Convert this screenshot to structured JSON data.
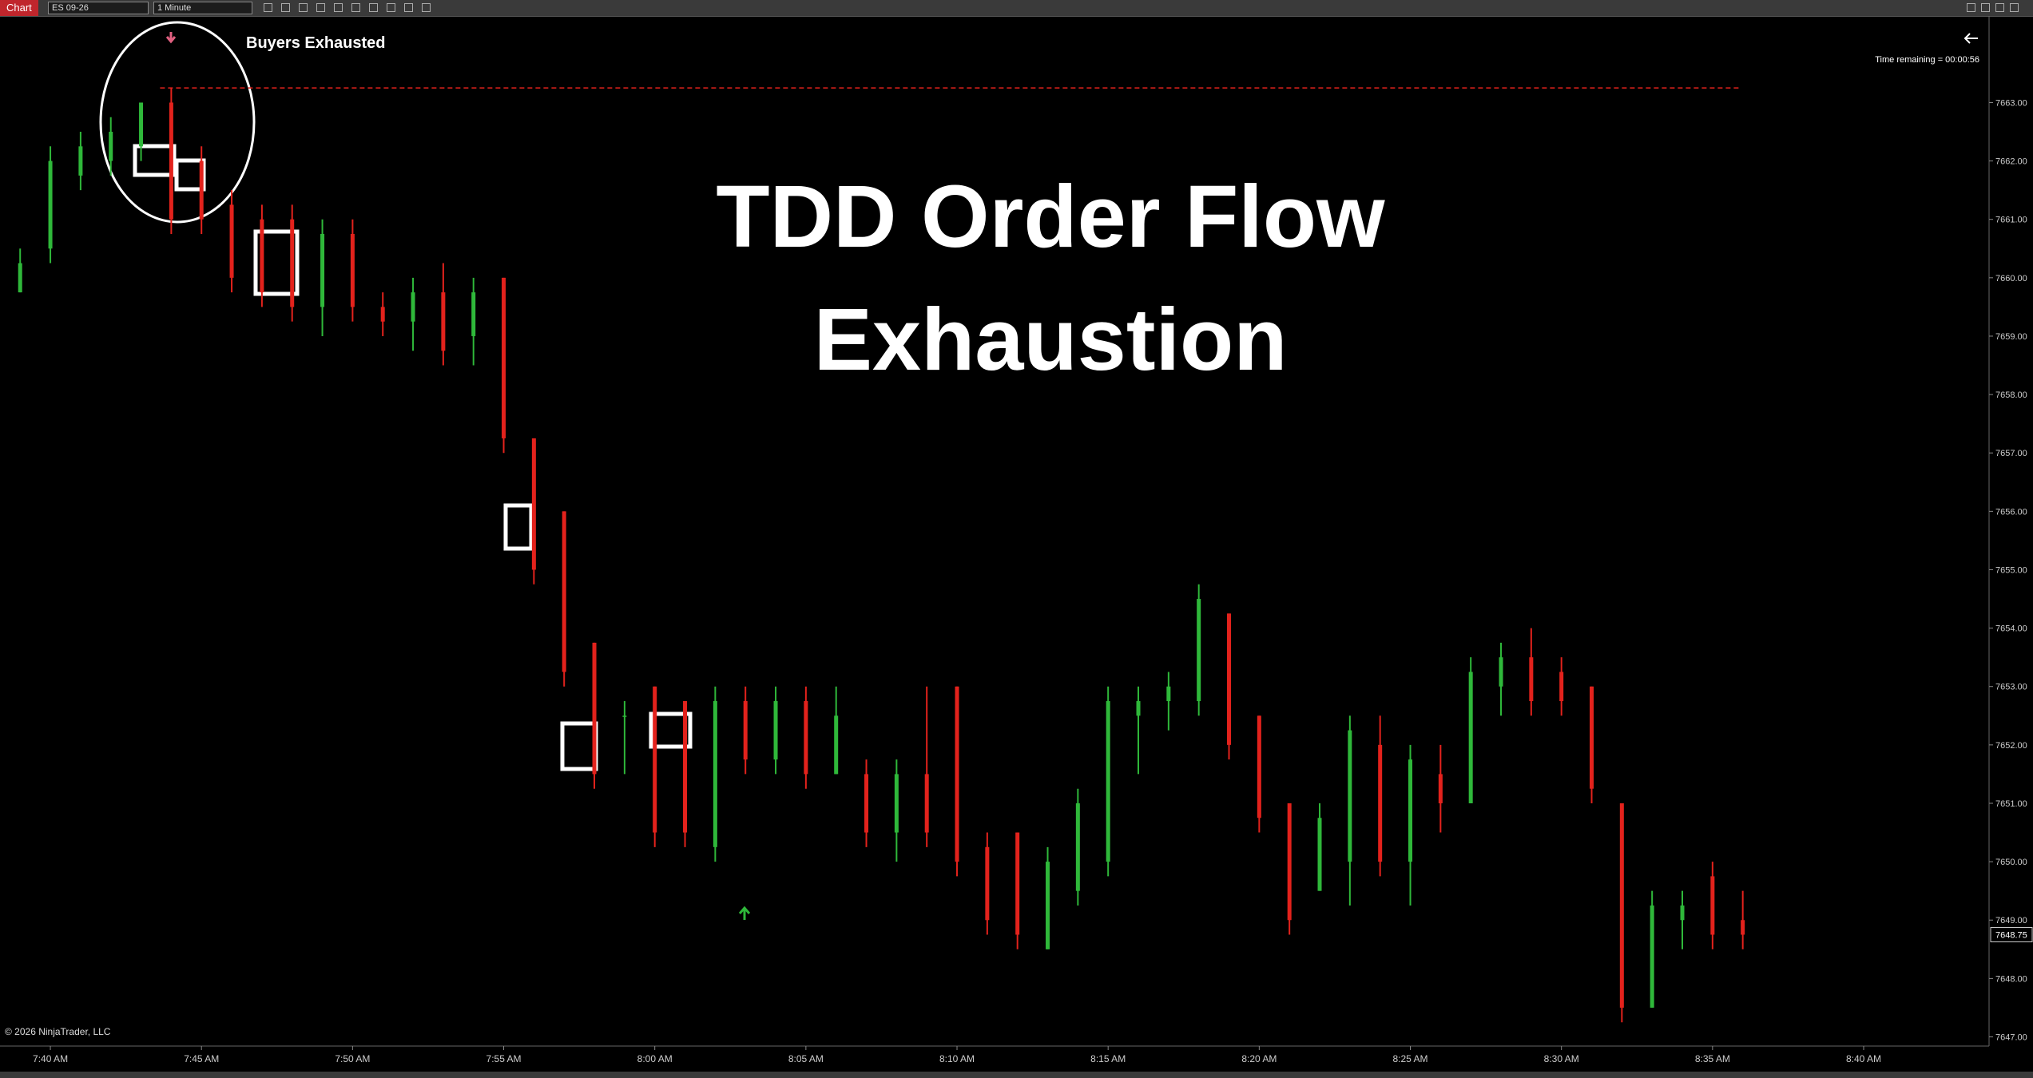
{
  "toolbar": {
    "app": "Chart",
    "instrument": "ES 09-26",
    "interval": "1 Minute"
  },
  "chart_data": {
    "type": "candlestick",
    "title": "TDD Order Flow Exhaustion",
    "annotation": "Buyers Exhausted",
    "time_remaining": "Time remaining = 00:00:56",
    "copyright": "© 2026 NinjaTrader, LLC",
    "last_price": 7648.75,
    "resistance_line": 7663.25,
    "up_color": "#2fb83a",
    "down_color": "#e3221c",
    "x": [
      "7:39 AM",
      "7:40 AM",
      "7:41 AM",
      "7:42 AM",
      "7:43 AM",
      "7:44 AM",
      "7:45 AM",
      "7:46 AM",
      "7:47 AM",
      "7:48 AM",
      "7:49 AM",
      "7:50 AM",
      "7:51 AM",
      "7:52 AM",
      "7:53 AM",
      "7:54 AM",
      "7:55 AM",
      "7:56 AM",
      "7:57 AM",
      "7:58 AM",
      "7:59 AM",
      "8:00 AM",
      "8:01 AM",
      "8:02 AM",
      "8:03 AM",
      "8:04 AM",
      "8:05 AM",
      "8:06 AM",
      "8:07 AM",
      "8:08 AM",
      "8:09 AM",
      "8:10 AM",
      "8:11 AM",
      "8:12 AM",
      "8:13 AM",
      "8:14 AM",
      "8:15 AM",
      "8:16 AM",
      "8:17 AM",
      "8:18 AM",
      "8:19 AM",
      "8:20 AM",
      "8:21 AM",
      "8:22 AM",
      "8:23 AM",
      "8:24 AM",
      "8:25 AM",
      "8:26 AM",
      "8:27 AM",
      "8:28 AM",
      "8:29 AM",
      "8:30 AM",
      "8:31 AM",
      "8:32 AM",
      "8:33 AM",
      "8:34 AM",
      "8:35 AM",
      "8:36 AM"
    ],
    "open": [
      7659.75,
      7660.5,
      7661.75,
      7662,
      7662.25,
      7663,
      7662,
      7661.25,
      7661,
      7661,
      7659.5,
      7660.75,
      7659.5,
      7659.25,
      7659.75,
      7659,
      7660,
      7657.25,
      7656,
      7653.75,
      7652.5,
      7653,
      7652.75,
      7650.25,
      7652.75,
      7651.75,
      7652.75,
      7651.5,
      7651.5,
      7650.5,
      7651.5,
      7653,
      7650.25,
      7650.5,
      7648.5,
      7649.5,
      7650,
      7652.5,
      7652.75,
      7652.75,
      7654.25,
      7652.5,
      7651,
      7649.5,
      7650,
      7652,
      7650,
      7651.5,
      7651,
      7653,
      7653.5,
      7653.25,
      7653,
      7651,
      7647.5,
      7649,
      7649.75,
      7649
    ],
    "high": [
      7660.5,
      7662.25,
      7662.5,
      7662.75,
      7663,
      7663.25,
      7662.25,
      7661.5,
      7661.25,
      7661.25,
      7661,
      7661,
      7659.75,
      7660,
      7660.25,
      7660,
      7660,
      7657.25,
      7656,
      7653.75,
      7652.75,
      7653,
      7652.75,
      7653,
      7653,
      7653,
      7653,
      7653,
      7651.75,
      7651.75,
      7653,
      7653,
      7650.5,
      7650.5,
      7650.25,
      7651.25,
      7653,
      7653,
      7653.25,
      7654.75,
      7654.25,
      7652.5,
      7651,
      7651,
      7652.5,
      7652.5,
      7652,
      7652,
      7653.5,
      7653.75,
      7654,
      7653.5,
      7653,
      7651,
      7649.5,
      7649.5,
      7650,
      7649.5
    ],
    "low": [
      7659.75,
      7660.25,
      7661.5,
      7661.75,
      7662,
      7660.75,
      7660.75,
      7659.75,
      7659.5,
      7659.25,
      7659,
      7659.25,
      7659,
      7658.75,
      7658.5,
      7658.5,
      7657,
      7654.75,
      7653,
      7651.25,
      7651.5,
      7650.25,
      7650.25,
      7650,
      7651.5,
      7651.5,
      7651.25,
      7651.5,
      7650.25,
      7650,
      7650.25,
      7649.75,
      7648.75,
      7648.5,
      7648.5,
      7649.25,
      7649.75,
      7651.5,
      7652.25,
      7652.5,
      7651.75,
      7650.5,
      7648.75,
      7649.5,
      7649.25,
      7649.75,
      7649.25,
      7650.5,
      7651,
      7652.5,
      7652.5,
      7652.5,
      7651,
      7647.25,
      7647.5,
      7648.5,
      7648.5,
      7648.5
    ],
    "close": [
      7660.25,
      7662,
      7662.25,
      7662.5,
      7663,
      7661,
      7661,
      7660,
      7659.75,
      7659.5,
      7660.75,
      7659.5,
      7659.25,
      7659.75,
      7658.75,
      7659.75,
      7657.25,
      7655,
      7653.25,
      7651.5,
      7652.5,
      7650.5,
      7650.5,
      7652.75,
      7651.75,
      7652.75,
      7651.5,
      7652.5,
      7650.5,
      7651.5,
      7650.5,
      7650,
      7649,
      7648.75,
      7650,
      7651,
      7652.75,
      7652.75,
      7653,
      7654.5,
      7652,
      7650.75,
      7649,
      7650.75,
      7652.25,
      7650,
      7651.75,
      7651,
      7653.25,
      7653.5,
      7652.75,
      7652.75,
      7651.25,
      7647.5,
      7649.25,
      7649.25,
      7648.75,
      7648.75
    ],
    "xlim": [
      "7:38:20 AM",
      "8:44:09 AM"
    ],
    "xticks": [
      "7:40 AM",
      "7:45 AM",
      "7:50 AM",
      "7:55 AM",
      "8:00 AM",
      "8:05 AM",
      "8:10 AM",
      "8:15 AM",
      "8:20 AM",
      "8:25 AM",
      "8:30 AM",
      "8:35 AM",
      "8:40 AM"
    ],
    "ylim": [
      7646.87,
      7664.36
    ],
    "yticks": [
      {
        "value": 7647,
        "label": "7647.00"
      },
      {
        "value": 7648,
        "label": "7648.00"
      },
      {
        "value": 7649,
        "label": "7649.00"
      },
      {
        "value": 7650,
        "label": "7650.00"
      },
      {
        "value": 7651,
        "label": "7651.00"
      },
      {
        "value": 7652,
        "label": "7652.00"
      },
      {
        "value": 7653,
        "label": "7653.00"
      },
      {
        "value": 7654,
        "label": "7654.00"
      },
      {
        "value": 7655,
        "label": "7655.00"
      },
      {
        "value": 7656,
        "label": "7656.00"
      },
      {
        "value": 7657,
        "label": "7657.00"
      },
      {
        "value": 7658,
        "label": "7658.00"
      },
      {
        "value": 7659,
        "label": "7659.00"
      },
      {
        "value": 7660,
        "label": "7660.00"
      },
      {
        "value": 7661,
        "label": "7661.00"
      },
      {
        "value": 7662,
        "label": "7662.00"
      },
      {
        "value": 7663,
        "label": "7663.00"
      }
    ]
  }
}
